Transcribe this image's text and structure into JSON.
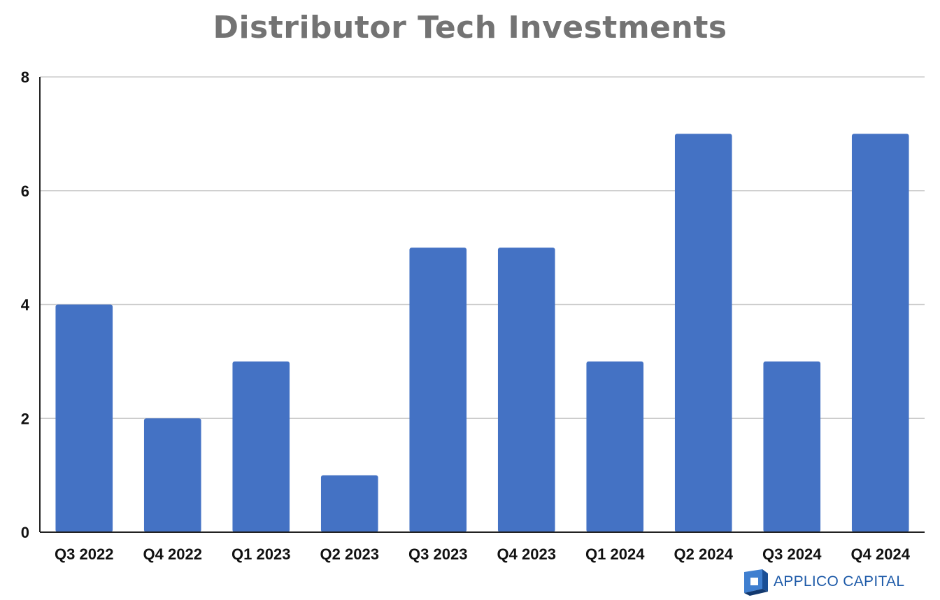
{
  "colors": {
    "bar": "#4472c4",
    "grid": "#cccccc",
    "axis": "#222222",
    "title": "#737373",
    "brand": "#1d5aa8"
  },
  "branding": {
    "name": "APPLICO CAPITAL",
    "logo_icon": "applico-cube-icon"
  },
  "chart_data": {
    "type": "bar",
    "title": "Distributor Tech Investments",
    "xlabel": "",
    "ylabel": "",
    "categories": [
      "Q3 2022",
      "Q4 2022",
      "Q1 2023",
      "Q2 2023",
      "Q3 2023",
      "Q4 2023",
      "Q1 2024",
      "Q2 2024",
      "Q3 2024",
      "Q4 2024"
    ],
    "values": [
      4,
      2,
      3,
      1,
      5,
      5,
      3,
      7,
      3,
      7
    ],
    "ylim": [
      0,
      8
    ],
    "yticks": [
      0,
      2,
      4,
      6,
      8
    ],
    "grid": true,
    "legend": "none"
  }
}
